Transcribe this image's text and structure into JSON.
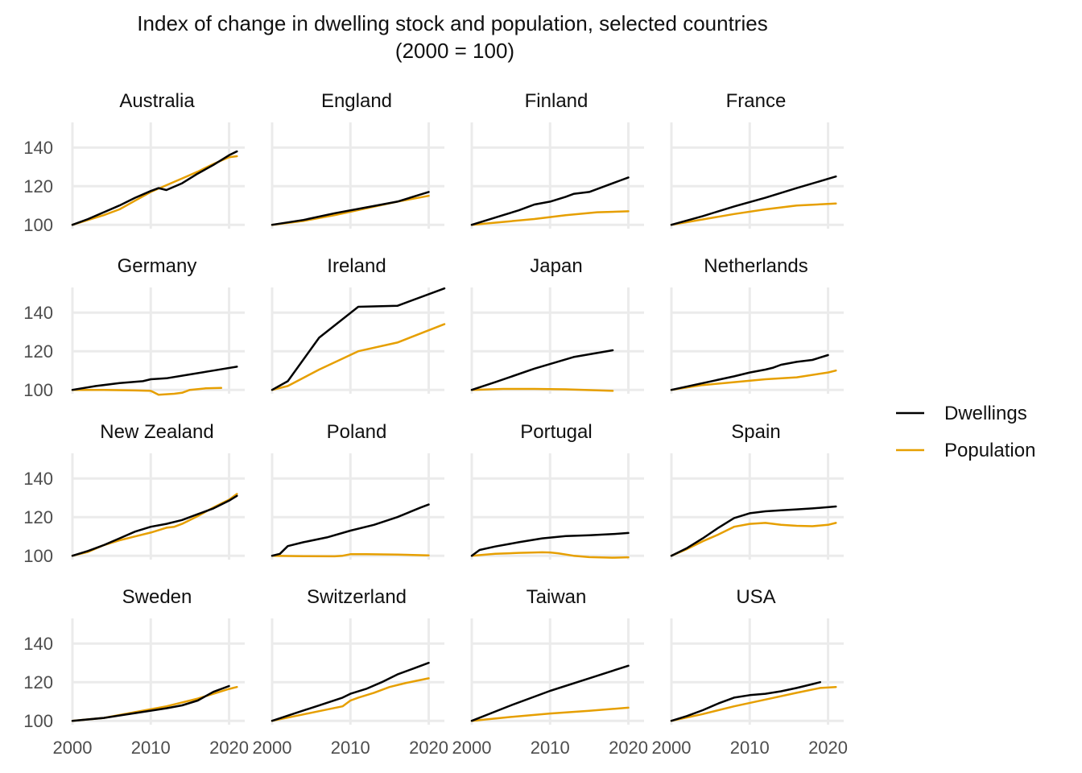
{
  "chart_data": {
    "type": "line",
    "title": "Index of change in dwelling stock and population, selected countries",
    "subtitle": "(2000 = 100)",
    "xlabel": "",
    "ylabel": "",
    "xlim": [
      2000,
      2022
    ],
    "ylim": [
      98,
      153
    ],
    "x_ticks": [
      2000,
      2010,
      2020
    ],
    "y_ticks": [
      100,
      120,
      140
    ],
    "grid": true,
    "legend_position": "right",
    "legend": [
      {
        "name": "Dwellings",
        "color": "#000000"
      },
      {
        "name": "Population",
        "color": "#e69f00"
      }
    ],
    "panels": [
      {
        "name": "Australia",
        "series": [
          {
            "name": "Dwellings",
            "x": [
              2000,
              2002,
              2004,
              2006,
              2008,
              2010,
              2011,
              2012,
              2014,
              2016,
              2018,
              2020,
              2021
            ],
            "y": [
              100,
              103,
              106.5,
              110,
              114,
              117.5,
              119,
              118,
              121.5,
              126.5,
              131,
              136,
              138
            ]
          },
          {
            "name": "Population",
            "x": [
              2000,
              2002,
              2004,
              2006,
              2008,
              2010,
              2012,
              2014,
              2016,
              2018,
              2020,
              2021
            ],
            "y": [
              100,
              102.5,
              105,
              108,
              112.5,
              117,
              120.5,
              124,
              127.5,
              131.5,
              135,
              135.5
            ]
          }
        ]
      },
      {
        "name": "England",
        "series": [
          {
            "name": "Dwellings",
            "x": [
              2000,
              2004,
              2008,
              2012,
              2016,
              2020
            ],
            "y": [
              100,
              102.5,
              106,
              109,
              112,
              117
            ]
          },
          {
            "name": "Population",
            "x": [
              2000,
              2004,
              2008,
              2012,
              2016,
              2020
            ],
            "y": [
              100,
              102,
              105,
              108.5,
              112,
              115
            ]
          }
        ]
      },
      {
        "name": "Finland",
        "series": [
          {
            "name": "Dwellings",
            "x": [
              2000,
              2002,
              2004,
              2006,
              2008,
              2010,
              2012,
              2013,
              2015,
              2017,
              2019,
              2020
            ],
            "y": [
              100,
              102.5,
              105,
              107.5,
              110.5,
              112,
              114.5,
              116,
              117,
              120,
              123,
              124.5
            ]
          },
          {
            "name": "Population",
            "x": [
              2000,
              2004,
              2008,
              2012,
              2016,
              2020
            ],
            "y": [
              100,
              101.5,
              103,
              105,
              106.5,
              107
            ]
          }
        ]
      },
      {
        "name": "France",
        "series": [
          {
            "name": "Dwellings",
            "x": [
              2000,
              2004,
              2008,
              2012,
              2016,
              2021
            ],
            "y": [
              100,
              104.5,
              109.5,
              114,
              119,
              125
            ]
          },
          {
            "name": "Population",
            "x": [
              2000,
              2004,
              2008,
              2012,
              2016,
              2021
            ],
            "y": [
              100,
              102.8,
              105.6,
              108,
              110,
              111
            ]
          }
        ]
      },
      {
        "name": "Germany",
        "series": [
          {
            "name": "Dwellings",
            "x": [
              2000,
              2003,
              2006,
              2009,
              2010,
              2012,
              2015,
              2018,
              2021
            ],
            "y": [
              100,
              102,
              103.5,
              104.5,
              105.5,
              106,
              108,
              110,
              112
            ]
          },
          {
            "name": "Population",
            "x": [
              2000,
              2004,
              2008,
              2010,
              2011,
              2013,
              2014,
              2015,
              2017,
              2019
            ],
            "y": [
              100,
              100,
              99.7,
              99.5,
              97.5,
              98,
              98.5,
              100,
              100.8,
              101
            ]
          }
        ]
      },
      {
        "name": "Ireland",
        "series": [
          {
            "name": "Dwellings",
            "x": [
              2000,
              2002,
              2006,
              2011,
              2016,
              2022
            ],
            "y": [
              100,
              104.5,
              127,
              143,
              143.5,
              152.5
            ]
          },
          {
            "name": "Population",
            "x": [
              2000,
              2002,
              2006,
              2011,
              2016,
              2022
            ],
            "y": [
              100,
              102,
              110.5,
              120,
              124.5,
              134
            ]
          }
        ]
      },
      {
        "name": "Japan",
        "series": [
          {
            "name": "Dwellings",
            "x": [
              2000,
              2003,
              2008,
              2013,
              2018
            ],
            "y": [
              100,
              104,
              111,
              117,
              120.5
            ]
          },
          {
            "name": "Population",
            "x": [
              2000,
              2004,
              2008,
              2012,
              2016,
              2018
            ],
            "y": [
              100,
              100.5,
              100.5,
              100.3,
              99.8,
              99.5
            ]
          }
        ]
      },
      {
        "name": "Netherlands",
        "series": [
          {
            "name": "Dwellings",
            "x": [
              2000,
              2004,
              2008,
              2010,
              2012,
              2013,
              2014,
              2016,
              2018,
              2020
            ],
            "y": [
              100,
              103.5,
              107,
              109,
              110.5,
              111.5,
              113,
              114.5,
              115.5,
              118
            ]
          },
          {
            "name": "Population",
            "x": [
              2000,
              2004,
              2008,
              2012,
              2016,
              2020,
              2021
            ],
            "y": [
              100,
              102.5,
              104,
              105.5,
              106.5,
              109,
              110
            ]
          }
        ]
      },
      {
        "name": "New Zealand",
        "series": [
          {
            "name": "Dwellings",
            "x": [
              2000,
              2002,
              2004,
              2006,
              2008,
              2010,
              2012,
              2014,
              2016,
              2018,
              2020,
              2021
            ],
            "y": [
              100,
              102.5,
              105.5,
              109,
              112.5,
              115,
              116.5,
              118.5,
              121.5,
              124.5,
              128.5,
              131
            ]
          },
          {
            "name": "Population",
            "x": [
              2000,
              2002,
              2004,
              2006,
              2008,
              2010,
              2012,
              2013,
              2014,
              2016,
              2018,
              2019,
              2020,
              2021
            ],
            "y": [
              100,
              102,
              105.5,
              108,
              110,
              112,
              114.5,
              115,
              116.5,
              120.5,
              125,
              127,
              129,
              132
            ]
          }
        ]
      },
      {
        "name": "Poland",
        "series": [
          {
            "name": "Dwellings",
            "x": [
              2000,
              2001,
              2002,
              2004,
              2007,
              2010,
              2013,
              2016,
              2019,
              2020
            ],
            "y": [
              100,
              101,
              105,
              107,
              109.5,
              113,
              116,
              120,
              125,
              126.5
            ]
          },
          {
            "name": "Population",
            "x": [
              2000,
              2004,
              2008,
              2009,
              2010,
              2012,
              2016,
              2020
            ],
            "y": [
              100,
              99.8,
              99.7,
              100,
              100.8,
              100.8,
              100.6,
              100.2
            ]
          }
        ]
      },
      {
        "name": "Portugal",
        "series": [
          {
            "name": "Dwellings",
            "x": [
              2000,
              2001,
              2003,
              2006,
              2009,
              2012,
              2015,
              2018,
              2020
            ],
            "y": [
              100,
              103,
              104.8,
              107,
              109,
              110.2,
              110.6,
              111.2,
              111.8
            ]
          },
          {
            "name": "Population",
            "x": [
              2000,
              2003,
              2006,
              2009,
              2010,
              2011,
              2013,
              2015,
              2018,
              2020
            ],
            "y": [
              100,
              101,
              101.5,
              101.8,
              101.7,
              101.3,
              100,
              99.3,
              99,
              99.2
            ]
          }
        ]
      },
      {
        "name": "Spain",
        "series": [
          {
            "name": "Dwellings",
            "x": [
              2000,
              2002,
              2004,
              2006,
              2008,
              2010,
              2012,
              2014,
              2016,
              2018,
              2021
            ],
            "y": [
              100,
              104,
              109,
              114.5,
              119.5,
              122,
              123,
              123.5,
              124,
              124.5,
              125.5
            ]
          },
          {
            "name": "Population",
            "x": [
              2000,
              2002,
              2004,
              2006,
              2008,
              2010,
              2012,
              2014,
              2016,
              2018,
              2020,
              2021
            ],
            "y": [
              100,
              103.5,
              107.5,
              111,
              115,
              116.5,
              117,
              116,
              115.5,
              115.3,
              116,
              117
            ]
          }
        ]
      },
      {
        "name": "Sweden",
        "series": [
          {
            "name": "Dwellings",
            "x": [
              2000,
              2004,
              2008,
              2012,
              2014,
              2016,
              2018,
              2020
            ],
            "y": [
              100,
              101.5,
              104,
              106.5,
              108,
              110.5,
              115,
              118
            ]
          },
          {
            "name": "Population",
            "x": [
              2000,
              2004,
              2008,
              2012,
              2016,
              2020,
              2021
            ],
            "y": [
              100,
              101.5,
              104.5,
              107.5,
              111.5,
              116.5,
              117.5
            ]
          }
        ]
      },
      {
        "name": "Switzerland",
        "series": [
          {
            "name": "Dwellings",
            "x": [
              2000,
              2003,
              2006,
              2009,
              2010,
              2012,
              2014,
              2016,
              2018,
              2020
            ],
            "y": [
              100,
              104,
              108,
              112,
              114,
              116.5,
              120,
              124,
              127,
              130
            ]
          },
          {
            "name": "Population",
            "x": [
              2000,
              2003,
              2006,
              2009,
              2010,
              2011,
              2013,
              2015,
              2017,
              2020
            ],
            "y": [
              100,
              102.5,
              105,
              107.5,
              110.5,
              112,
              114.5,
              117.5,
              119.5,
              122
            ]
          }
        ]
      },
      {
        "name": "Taiwan",
        "series": [
          {
            "name": "Dwellings",
            "x": [
              2000,
              2005,
              2010,
              2015,
              2020
            ],
            "y": [
              100,
              108,
              115.5,
              122,
              128.5
            ]
          },
          {
            "name": "Population",
            "x": [
              2000,
              2005,
              2010,
              2015,
              2020
            ],
            "y": [
              100,
              102,
              103.8,
              105.2,
              106.8
            ]
          }
        ]
      },
      {
        "name": "USA",
        "series": [
          {
            "name": "Dwellings",
            "x": [
              2000,
              2002,
              2004,
              2006,
              2008,
              2010,
              2012,
              2014,
              2016,
              2018,
              2019
            ],
            "y": [
              100,
              102.5,
              105.5,
              109,
              112,
              113.3,
              114,
              115.3,
              117,
              119,
              120
            ]
          },
          {
            "name": "Population",
            "x": [
              2000,
              2004,
              2008,
              2012,
              2016,
              2019,
              2021
            ],
            "y": [
              100,
              103.5,
              107.5,
              111,
              114.5,
              117,
              117.5
            ]
          }
        ]
      }
    ]
  }
}
